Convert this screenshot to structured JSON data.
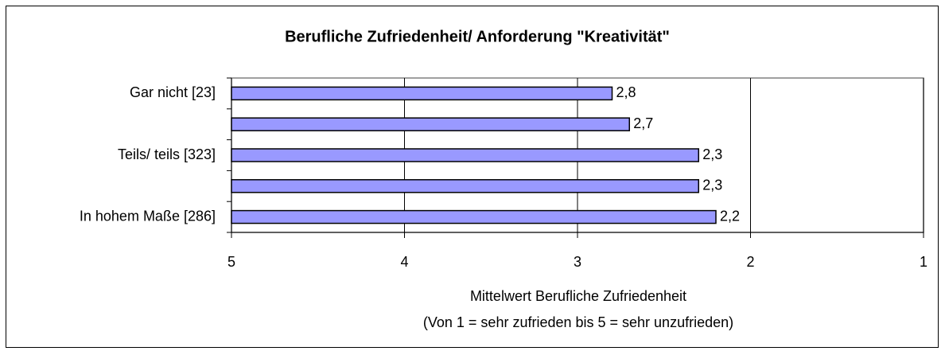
{
  "chart_data": {
    "type": "bar",
    "orientation": "horizontal",
    "title": "Berufliche Zufriedenheit/ Anforderung \"Kreativität\"",
    "categories": [
      "Gar nicht [23]",
      null,
      "Teils/ teils [323]",
      null,
      "In hohem Maße [286]"
    ],
    "values": [
      2.8,
      2.7,
      2.3,
      2.3,
      2.2
    ],
    "value_labels": [
      "2,8",
      "2,7",
      "2,3",
      "2,3",
      "2,2"
    ],
    "color": "#9999ff",
    "xlim": [
      5,
      1
    ],
    "xticks": [
      5,
      4,
      3,
      2,
      1
    ],
    "grid": true,
    "xlabel": [
      "Mittelwert Berufliche Zufriedenheit",
      "(Von 1 = sehr zufrieden bis 5 = sehr unzufrieden)"
    ]
  }
}
